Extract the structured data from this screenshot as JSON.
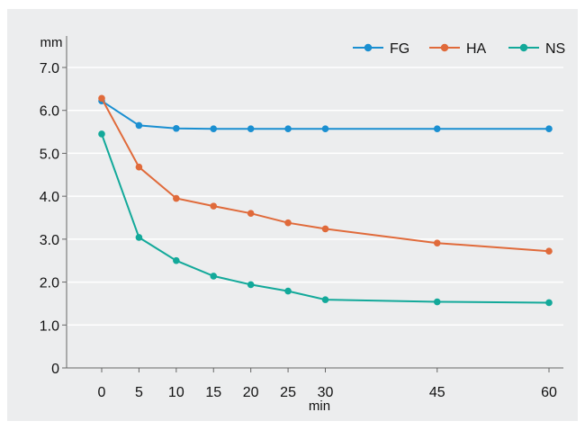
{
  "chart_data": {
    "type": "line",
    "x": [
      0,
      5,
      10,
      15,
      20,
      25,
      30,
      45,
      60
    ],
    "x_tick_labels": [
      "0",
      "5",
      "10",
      "15",
      "20",
      "25",
      "30",
      "45",
      "60"
    ],
    "y_tick_labels": [
      "0",
      "1.0",
      "2.0",
      "3.0",
      "4.0",
      "5.0",
      "6.0",
      "7.0"
    ],
    "ylim": [
      0,
      7.0
    ],
    "xlabel": "min",
    "ylabel": "mm",
    "grid": true,
    "legend_position": "top-right",
    "series": [
      {
        "name": "FG",
        "color": "#1a8fd1",
        "values": [
          6.22,
          5.65,
          5.58,
          5.57,
          5.57,
          5.57,
          5.57,
          5.57,
          5.57
        ]
      },
      {
        "name": "HA",
        "color": "#e06a3a",
        "values": [
          6.28,
          4.68,
          3.95,
          3.77,
          3.6,
          3.38,
          3.24,
          2.91,
          2.72
        ]
      },
      {
        "name": "NS",
        "color": "#13a99a",
        "values": [
          5.45,
          3.04,
          2.5,
          2.14,
          1.94,
          1.79,
          1.59,
          1.54,
          1.52
        ]
      }
    ]
  }
}
